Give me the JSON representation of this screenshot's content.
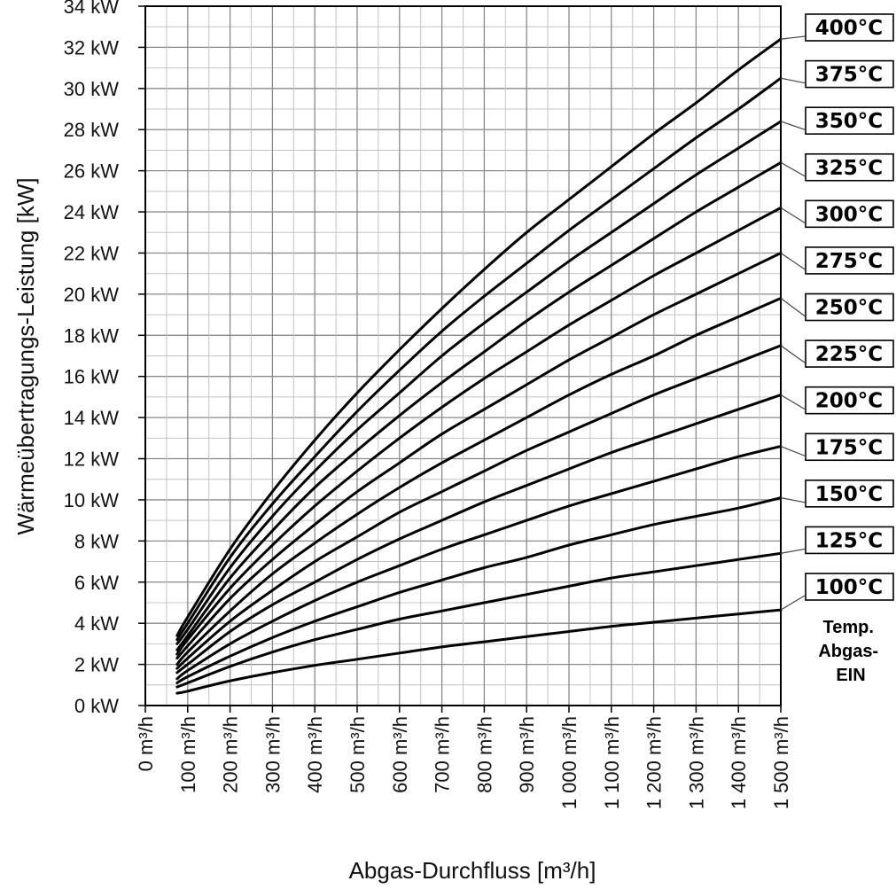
{
  "chart_data": {
    "type": "line",
    "title": "",
    "xlabel": "Abgas-Durchfluss [m³/h]",
    "ylabel": "Wärmeübertragungs-Leistung [kW]",
    "xlim": [
      0,
      1500
    ],
    "ylim": [
      0,
      34
    ],
    "grid": true,
    "x_ticks": [
      "0 m³/h",
      "100 m³/h",
      "200 m³/h",
      "300 m³/h",
      "400 m³/h",
      "500 m³/h",
      "600 m³/h",
      "700 m³/h",
      "800 m³/h",
      "900 m³/h",
      "1 000 m³/h",
      "1 100 m³/h",
      "1 200 m³/h",
      "1 300 m³/h",
      "1 400 m³/h",
      "1 500 m³/h"
    ],
    "y_ticks": [
      "0 kW",
      "2 kW",
      "4 kW",
      "6 kW",
      "8 kW",
      "10 kW",
      "12 kW",
      "14 kW",
      "16 kW",
      "18 kW",
      "20 kW",
      "22 kW",
      "24 kW",
      "26 kW",
      "28 kW",
      "30 kW",
      "32 kW",
      "34 kW"
    ],
    "legend_title": [
      "Temp.",
      "Abgas-",
      "EIN"
    ],
    "x": [
      75,
      100,
      200,
      300,
      400,
      500,
      600,
      700,
      800,
      900,
      1000,
      1100,
      1200,
      1300,
      1400,
      1500
    ],
    "series": [
      {
        "name": "400°C",
        "values": [
          3.4,
          4.3,
          7.6,
          10.4,
          12.9,
          15.2,
          17.3,
          19.3,
          21.2,
          23.0,
          24.6,
          26.2,
          27.8,
          29.3,
          30.9,
          32.4
        ]
      },
      {
        "name": "375°C",
        "values": [
          3.2,
          4.0,
          7.2,
          9.8,
          12.1,
          14.3,
          16.3,
          18.2,
          19.9,
          21.5,
          23.1,
          24.6,
          26.1,
          27.6,
          29.0,
          30.5
        ]
      },
      {
        "name": "350°C",
        "values": [
          3.0,
          3.7,
          6.7,
          9.2,
          11.4,
          13.4,
          15.2,
          17.0,
          18.6,
          20.1,
          21.6,
          23.0,
          24.4,
          25.8,
          27.1,
          28.4
        ]
      },
      {
        "name": "325°C",
        "values": [
          2.7,
          3.4,
          6.2,
          8.5,
          10.6,
          12.4,
          14.1,
          15.7,
          17.2,
          18.7,
          20.1,
          21.4,
          22.7,
          24.0,
          25.2,
          26.4
        ]
      },
      {
        "name": "300°C",
        "values": [
          2.5,
          3.2,
          5.7,
          7.8,
          9.7,
          11.4,
          13.0,
          14.5,
          15.9,
          17.2,
          18.5,
          19.7,
          20.9,
          22.0,
          23.1,
          24.2
        ]
      },
      {
        "name": "275°C",
        "values": [
          2.3,
          2.9,
          5.2,
          7.1,
          8.8,
          10.4,
          11.8,
          13.2,
          14.4,
          15.6,
          16.8,
          17.9,
          19.0,
          20.0,
          21.0,
          22.0
        ]
      },
      {
        "name": "250°C",
        "values": [
          2.0,
          2.6,
          4.6,
          6.4,
          7.9,
          9.3,
          10.6,
          11.8,
          12.9,
          14.0,
          15.1,
          16.1,
          17.0,
          18.0,
          18.9,
          19.8
        ]
      },
      {
        "name": "225°C",
        "values": [
          1.8,
          2.3,
          4.1,
          5.6,
          7.0,
          8.2,
          9.4,
          10.4,
          11.4,
          12.4,
          13.3,
          14.2,
          15.1,
          15.9,
          16.7,
          17.5
        ]
      },
      {
        "name": "200°C",
        "values": [
          1.6,
          2.0,
          3.6,
          4.9,
          6.0,
          7.1,
          8.1,
          9.0,
          9.9,
          10.7,
          11.5,
          12.3,
          13.0,
          13.7,
          14.4,
          15.1
        ]
      },
      {
        "name": "175°C",
        "values": [
          1.3,
          1.7,
          3.0,
          4.1,
          5.1,
          6.0,
          6.8,
          7.6,
          8.3,
          9.0,
          9.7,
          10.3,
          10.9,
          11.5,
          12.1,
          12.6
        ]
      },
      {
        "name": "150°C",
        "values": [
          1.1,
          1.4,
          2.4,
          3.3,
          4.1,
          4.8,
          5.5,
          6.1,
          6.7,
          7.2,
          7.8,
          8.3,
          8.8,
          9.2,
          9.6,
          10.1
        ]
      },
      {
        "name": "125°C",
        "values": [
          0.9,
          1.1,
          1.9,
          2.6,
          3.2,
          3.7,
          4.2,
          4.6,
          5.0,
          5.4,
          5.8,
          6.2,
          6.5,
          6.8,
          7.1,
          7.4
        ]
      },
      {
        "name": "100°C",
        "values": [
          0.6,
          0.7,
          1.2,
          1.6,
          1.95,
          2.25,
          2.55,
          2.85,
          3.1,
          3.35,
          3.6,
          3.85,
          4.05,
          4.25,
          4.45,
          4.65
        ]
      }
    ]
  }
}
